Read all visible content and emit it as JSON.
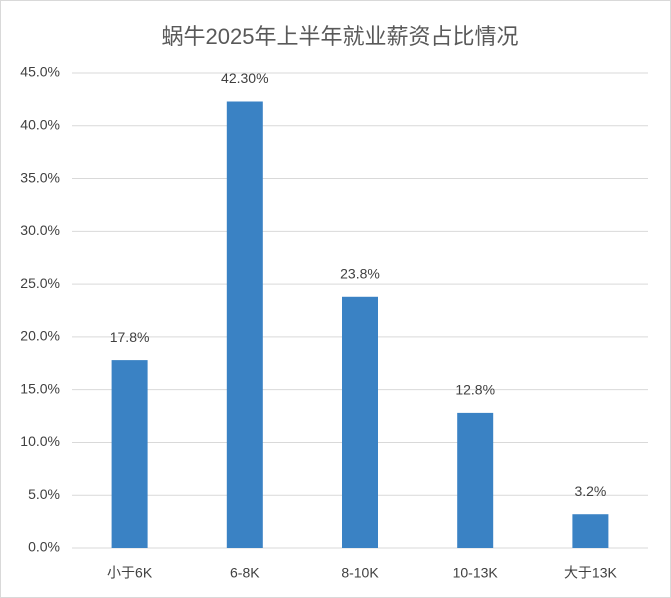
{
  "chart_data": {
    "type": "bar",
    "title": "蜗牛2025年上半年就业薪资占比情况",
    "categories": [
      "小于6K",
      "6-8K",
      "8-10K",
      "10-13K",
      "大于13K"
    ],
    "values": [
      17.8,
      42.3,
      23.8,
      12.8,
      3.2
    ],
    "value_labels": [
      "17.8%",
      "42.30%",
      "23.8%",
      "12.8%",
      "3.2%"
    ],
    "color": "#3a82c4",
    "ylim": [
      0,
      45
    ],
    "yticks": [
      {
        "value": 0,
        "label": "0.0%"
      },
      {
        "value": 5,
        "label": "5.0%"
      },
      {
        "value": 10,
        "label": "10.0%"
      },
      {
        "value": 15,
        "label": "15.0%"
      },
      {
        "value": 20,
        "label": "20.0%"
      },
      {
        "value": 25,
        "label": "25.0%"
      },
      {
        "value": 30,
        "label": "30.0%"
      },
      {
        "value": 35,
        "label": "35.0%"
      },
      {
        "value": 40,
        "label": "40.0%"
      },
      {
        "value": 45,
        "label": "45.0%"
      }
    ],
    "grid": true
  }
}
